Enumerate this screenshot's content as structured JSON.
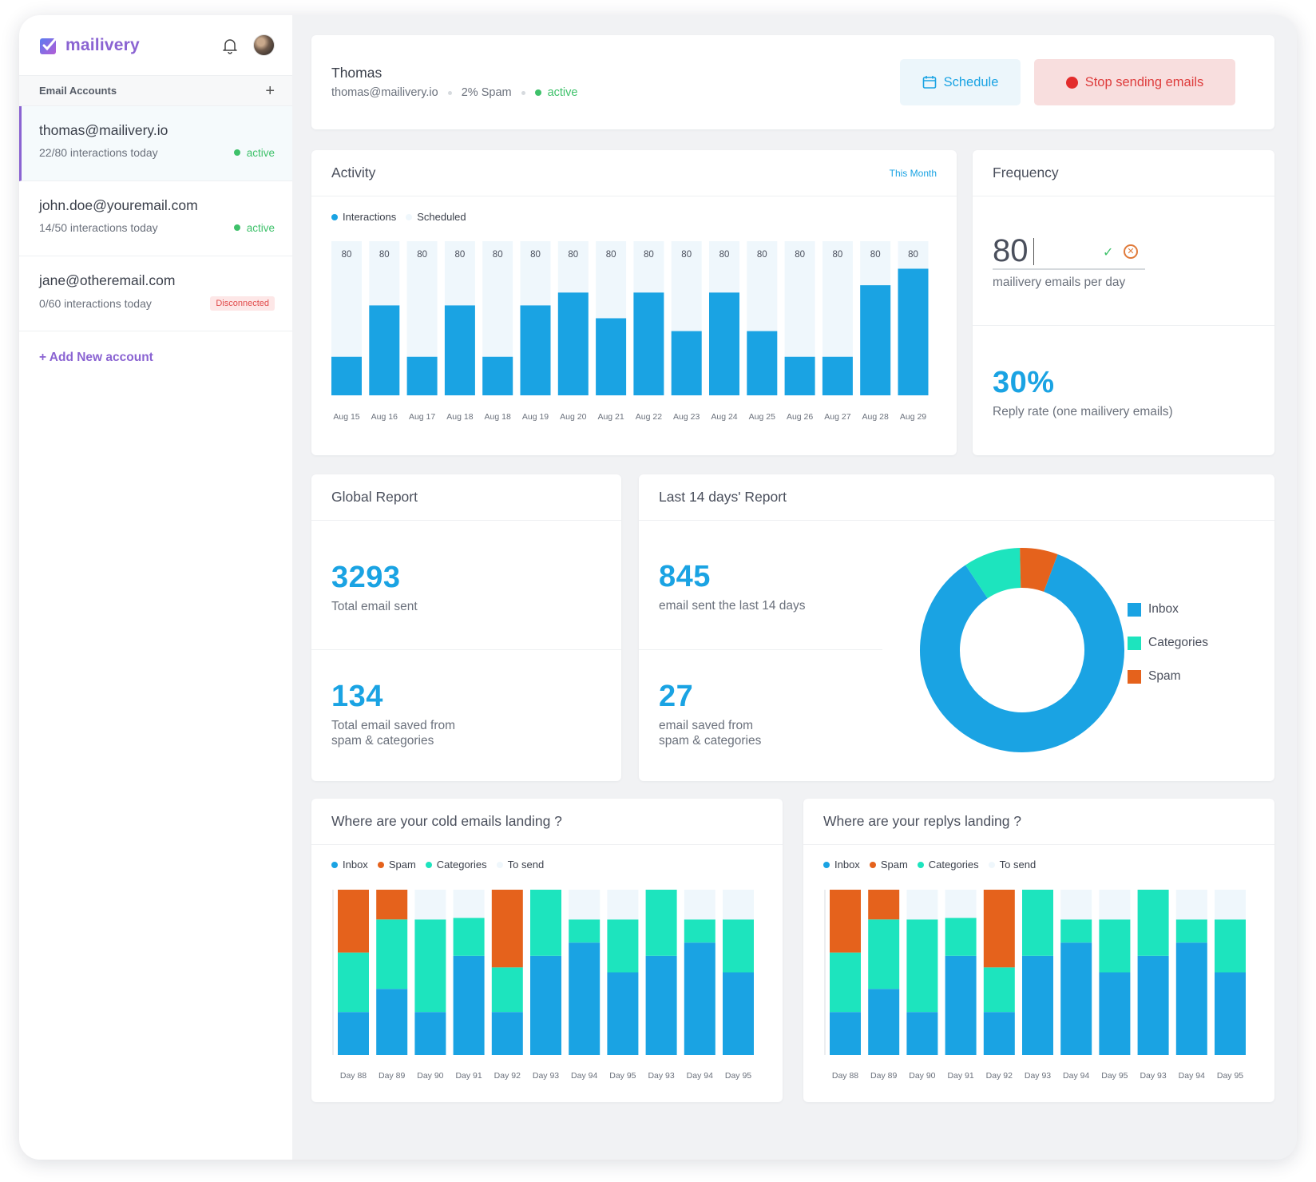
{
  "brand": {
    "name": "mailivery",
    "logo_icon": "check-square-icon",
    "bell_icon": "bell-icon"
  },
  "sidebar": {
    "accounts_label": "Email Accounts",
    "add_icon": "+",
    "accounts": [
      {
        "email": "thomas@mailivery.io",
        "interactions": "22/80 interactions today",
        "status": "active",
        "selected": true
      },
      {
        "email": "john.doe@youremail.com",
        "interactions": "14/50 interactions today",
        "status": "active"
      },
      {
        "email": "jane@otheremail.com",
        "interactions": "0/60 interactions today",
        "status": "Disconnected"
      }
    ],
    "add_new": "+ Add New account"
  },
  "header": {
    "name": "Thomas",
    "email": "thomas@mailivery.io",
    "spam": "2% Spam",
    "status": "active",
    "schedule_label": "Schedule",
    "stop_label": "Stop sending emails"
  },
  "activity": {
    "title": "Activity",
    "range": "This Month",
    "legend": [
      "Interactions",
      "Scheduled"
    ]
  },
  "frequency": {
    "title": "Frequency",
    "value": "80",
    "value_label": "mailivery emails per day",
    "reply_rate": "30%",
    "reply_label": "Reply rate (one mailivery emails)"
  },
  "global_report": {
    "title": "Global Report",
    "total_sent": "3293",
    "total_sent_label": "Total email sent",
    "saved": "134",
    "saved_label_1": "Total email saved from",
    "saved_label_2": "spam & categories"
  },
  "last14": {
    "title": "Last 14 days' Report",
    "sent": "845",
    "sent_label": "email sent the last 14 days",
    "saved": "27",
    "saved_label_1": "email saved from",
    "saved_label_2": "spam & categories",
    "legend": [
      "Inbox",
      "Categories",
      "Spam"
    ]
  },
  "cold": {
    "title": "Where are your cold emails landing ?",
    "legend": [
      "Inbox",
      "Spam",
      "Categories",
      "To send"
    ]
  },
  "replys": {
    "title": "Where are your replys landing ?",
    "legend": [
      "Inbox",
      "Spam",
      "Categories",
      "To send"
    ]
  },
  "colors": {
    "blue": "#1aa3e3",
    "teal": "#1de4be",
    "orange": "#e5621c",
    "light": "#eff7fc",
    "purple": "#8a63d2",
    "green": "#3ec16a"
  },
  "chart_data": [
    {
      "type": "bar",
      "categories": [
        "Aug 15",
        "Aug 16",
        "Aug 17",
        "Aug 18",
        "Aug 18",
        "Aug 19",
        "Aug 20",
        "Aug 21",
        "Aug 22",
        "Aug 23",
        "Aug 24",
        "Aug 25",
        "Aug 26",
        "Aug 27",
        "Aug 28",
        "Aug 29"
      ],
      "series": [
        {
          "name": "Interactions",
          "values": [
            21,
            49,
            21,
            49,
            21,
            49,
            56,
            42,
            56,
            35,
            56,
            35,
            21,
            21,
            60,
            69
          ]
        },
        {
          "name": "Scheduled",
          "values": [
            80,
            80,
            80,
            80,
            80,
            80,
            80,
            80,
            80,
            80,
            80,
            80,
            80,
            80,
            80,
            80
          ]
        }
      ],
      "labels": [
        "80",
        "80",
        "80",
        "80",
        "80",
        "80",
        "80",
        "80",
        "80",
        "80",
        "80",
        "80",
        "80",
        "80",
        "80",
        "80"
      ],
      "ylim": [
        0,
        84
      ]
    },
    {
      "type": "pie",
      "categories": [
        "Inbox",
        "Categories",
        "Spam"
      ],
      "values": [
        85,
        9,
        6
      ]
    },
    {
      "type": "bar",
      "categories": [
        "Day 88",
        "Day 89",
        "Day 90",
        "Day 91",
        "Day 92",
        "Day 93",
        "Day 94",
        "Day 95",
        "Day 93",
        "Day 94",
        "Day 95"
      ],
      "series": [
        {
          "name": "Inbox",
          "values": [
            26,
            40,
            26,
            60,
            26,
            60,
            68,
            50,
            60,
            68,
            50
          ]
        },
        {
          "name": "Categories",
          "values": [
            36,
            42,
            56,
            23,
            27,
            40,
            14,
            32,
            40,
            14,
            32
          ]
        },
        {
          "name": "Spam",
          "values": [
            38,
            18,
            0,
            0,
            47,
            0,
            0,
            0,
            0,
            0,
            0
          ]
        },
        {
          "name": "To send",
          "values": [
            0,
            0,
            18,
            17,
            0,
            0,
            18,
            18,
            0,
            18,
            18
          ]
        }
      ],
      "ylim": [
        0,
        100
      ]
    },
    {
      "type": "bar",
      "categories": [
        "Day 88",
        "Day 89",
        "Day 90",
        "Day 91",
        "Day 92",
        "Day 93",
        "Day 94",
        "Day 95",
        "Day 93",
        "Day 94",
        "Day 95"
      ],
      "series": [
        {
          "name": "Inbox",
          "values": [
            26,
            40,
            26,
            60,
            26,
            60,
            68,
            50,
            60,
            68,
            50
          ]
        },
        {
          "name": "Categories",
          "values": [
            36,
            42,
            56,
            23,
            27,
            40,
            14,
            32,
            40,
            14,
            32
          ]
        },
        {
          "name": "Spam",
          "values": [
            38,
            18,
            0,
            0,
            47,
            0,
            0,
            0,
            0,
            0,
            0
          ]
        },
        {
          "name": "To send",
          "values": [
            0,
            0,
            18,
            17,
            0,
            0,
            18,
            18,
            0,
            18,
            18
          ]
        }
      ],
      "ylim": [
        0,
        100
      ]
    }
  ]
}
